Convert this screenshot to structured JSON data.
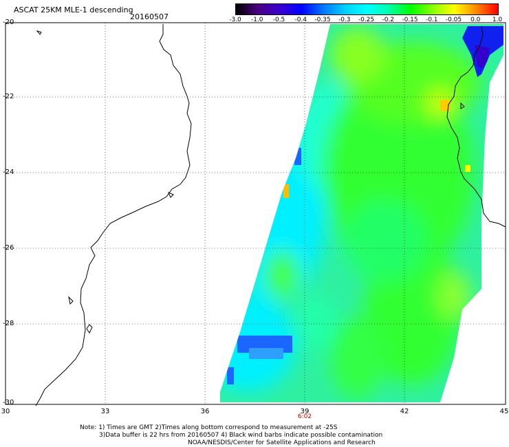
{
  "header": {
    "title": "ASCAT 25KM MLE-1 descending",
    "date": "20160507"
  },
  "colorbar": {
    "labels": [
      "-3.0",
      "-1.0",
      "-0.5",
      "-0.4",
      "-0.35",
      "-0.3",
      "-0.25",
      "-0.2",
      "-0.15",
      "-0.1",
      "-0.05",
      "0.0",
      "1.0"
    ],
    "colors": [
      "#000000",
      "#4b0082",
      "#3a00d0",
      "#0000ff",
      "#0077ff",
      "#00d0ff",
      "#00ffff",
      "#00ffaa",
      "#00ff00",
      "#88ff00",
      "#ffff00",
      "#ff8800",
      "#ff0000"
    ]
  },
  "axes": {
    "y_labels": [
      "-20",
      "-22",
      "-24",
      "-26",
      "-28",
      "-30"
    ],
    "x_labels": [
      "30",
      "33",
      "36",
      "39",
      "42",
      "45"
    ],
    "x_values": [
      30,
      33,
      36,
      39,
      42,
      45
    ],
    "y_values": [
      -20,
      -22,
      -24,
      -26,
      -28,
      -30
    ],
    "lon_range": [
      30,
      45
    ],
    "lat_range": [
      -30,
      -20
    ],
    "grid": "dotted",
    "time_label": "6:02"
  },
  "notes": {
    "line1": "Note: 1) Times are GMT 2)Times along bottom correspond to measurement at -25S",
    "line2": "3)Data buffer is 22 hrs from 20160507 4) Black wind barbs indicate possible contamination",
    "line3": "NOAA/NESDIS/Center for Satellite Applications and Research"
  }
}
